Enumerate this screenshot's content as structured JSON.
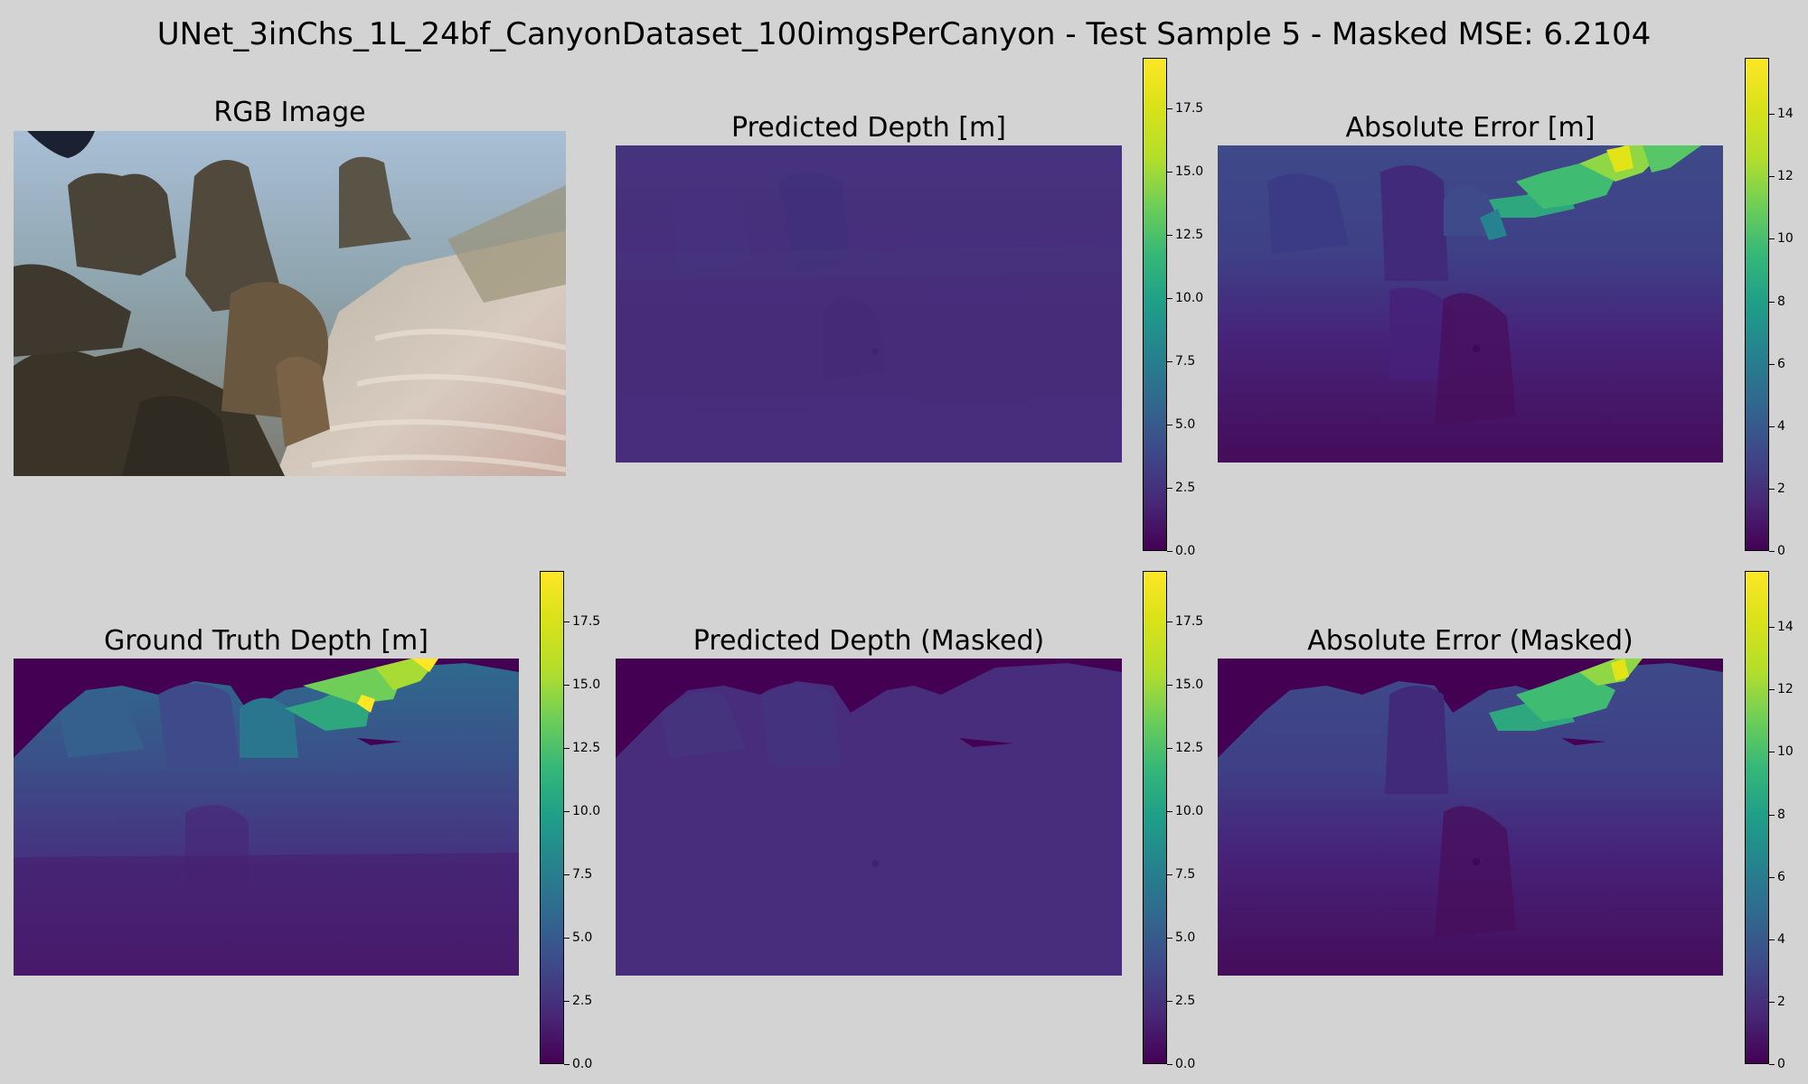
{
  "figure": {
    "suptitle": "UNet_3inChs_1L_24bf_CanyonDataset_100imgsPerCanyon - Test Sample 5 - Masked MSE: 6.2104"
  },
  "panels": [
    {
      "title": "RGB Image"
    },
    {
      "title": "Predicted Depth [m]"
    },
    {
      "title": "Absolute Error [m]"
    },
    {
      "title": "Ground Truth Depth [m]"
    },
    {
      "title": "Predicted Depth (Masked)"
    },
    {
      "title": "Absolute Error (Masked)"
    }
  ],
  "colormap": {
    "name": "viridis",
    "stops": [
      "#440154",
      "#482878",
      "#3e4989",
      "#31688e",
      "#26828e",
      "#1f9e89",
      "#35b779",
      "#6ece58",
      "#b5de2b",
      "#d8e219",
      "#fde725"
    ]
  },
  "chart_data": [
    {
      "type": "heatmap",
      "title": "RGB Image",
      "colorbar": null
    },
    {
      "type": "heatmap",
      "title": "Predicted Depth [m]",
      "colormap": "viridis",
      "vmin": 0,
      "vmax": 19.5,
      "ticks": [
        "0.0",
        "2.5",
        "5.0",
        "7.5",
        "10.0",
        "12.5",
        "15.0",
        "17.5"
      ],
      "approx_values": {
        "typical_range": [
          1.5,
          3.5
        ]
      }
    },
    {
      "type": "heatmap",
      "title": "Absolute Error [m]",
      "colormap": "viridis",
      "vmin": 0,
      "vmax": 15.8,
      "ticks": [
        "0",
        "2",
        "4",
        "6",
        "8",
        "10",
        "12",
        "14"
      ],
      "approx_values": {
        "bottom": 0.5,
        "mid": 2.5,
        "horizon_band": 8.5,
        "top_right_peak": 15.5
      }
    },
    {
      "type": "heatmap",
      "title": "Ground Truth Depth [m]",
      "colormap": "viridis",
      "vmin": 0,
      "vmax": 19.5,
      "ticks": [
        "0.0",
        "2.5",
        "5.0",
        "7.5",
        "10.0",
        "12.5",
        "15.0",
        "17.5"
      ],
      "approx_values": {
        "masked_top": 0,
        "bottom": 1.5,
        "mid": 4.5,
        "horizon_band": 9,
        "top_right_peak": 19
      }
    },
    {
      "type": "heatmap",
      "title": "Predicted Depth (Masked)",
      "colormap": "viridis",
      "vmin": 0,
      "vmax": 19.5,
      "ticks": [
        "0.0",
        "2.5",
        "5.0",
        "7.5",
        "10.0",
        "12.5",
        "15.0",
        "17.5"
      ],
      "approx_values": {
        "masked_top": 0,
        "typical_range": [
          1.5,
          3.5
        ]
      }
    },
    {
      "type": "heatmap",
      "title": "Absolute Error (Masked)",
      "colormap": "viridis",
      "vmin": 0,
      "vmax": 15.8,
      "ticks": [
        "0",
        "2",
        "4",
        "6",
        "8",
        "10",
        "12",
        "14"
      ],
      "approx_values": {
        "masked_top": 0,
        "bottom": 0.5,
        "mid": 2.5,
        "horizon_band": 8.5,
        "top_right_peak": 15.5
      }
    }
  ]
}
